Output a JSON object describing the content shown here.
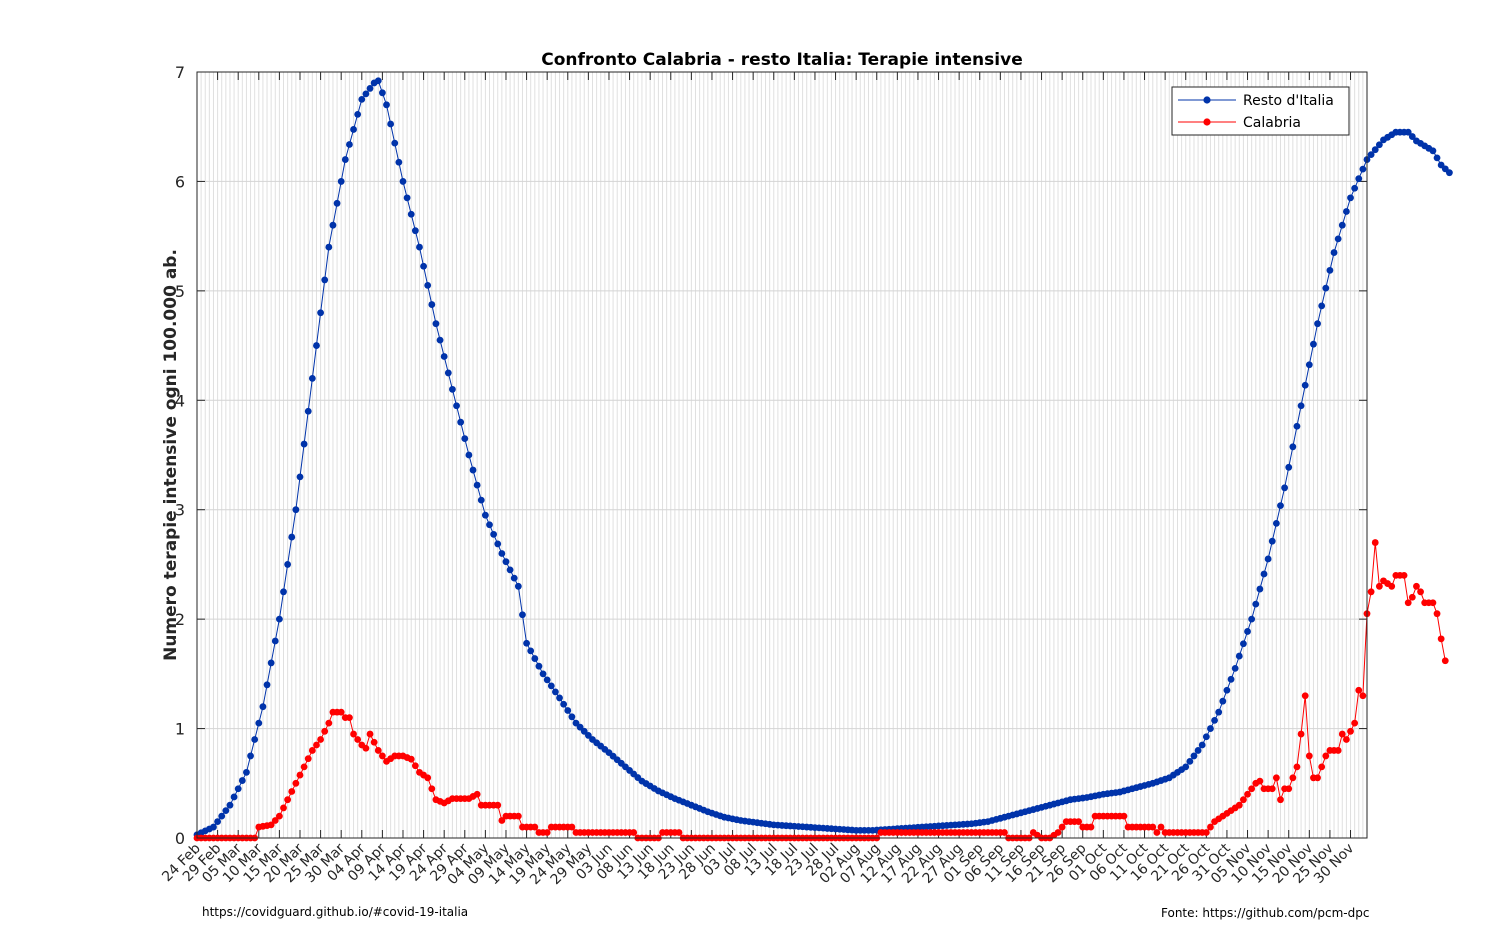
{
  "chart_data": {
    "type": "line",
    "title": "Confronto Calabria - resto Italia: Terapie intensive",
    "xlabel": "",
    "ylabel": "Numero terapie intensive ogni 100.000 ab.",
    "ylim": [
      0,
      7
    ],
    "yticks": [
      0,
      1,
      2,
      3,
      4,
      5,
      6,
      7
    ],
    "grid": true,
    "legend_position": "top-right",
    "xticks": [
      "24 Feb",
      "29 Feb",
      "05 Mar",
      "10 Mar",
      "15 Mar",
      "20 Mar",
      "25 Mar",
      "30 Mar",
      "04 Apr",
      "09 Apr",
      "14 Apr",
      "19 Apr",
      "24 Apr",
      "29 Apr",
      "04 May",
      "09 May",
      "14 May",
      "19 May",
      "24 May",
      "29 May",
      "03 Jun",
      "08 Jun",
      "13 Jun",
      "18 Jun",
      "23 Jun",
      "28 Jun",
      "03 Jul",
      "08 Jul",
      "13 Jul",
      "18 Jul",
      "23 Jul",
      "28 Jul",
      "02 Aug",
      "07 Aug",
      "12 Aug",
      "17 Aug",
      "22 Aug",
      "27 Aug",
      "01 Sep",
      "06 Sep",
      "11 Sep",
      "16 Sep",
      "21 Sep",
      "26 Sep",
      "01 Oct",
      "06 Oct",
      "11 Oct",
      "16 Oct",
      "21 Oct",
      "26 Oct",
      "31 Oct",
      "05 Nov",
      "10 Nov",
      "15 Nov",
      "20 Nov",
      "25 Nov",
      "30 Nov"
    ],
    "series": [
      {
        "name": "Resto d'Italia",
        "color": "#0033aa",
        "points": [
          [
            0,
            0.03
          ],
          [
            4,
            0.1
          ],
          [
            8,
            0.3
          ],
          [
            12,
            0.6
          ],
          [
            16,
            1.2
          ],
          [
            20,
            2.0
          ],
          [
            24,
            3.0
          ],
          [
            28,
            4.2
          ],
          [
            32,
            5.4
          ],
          [
            36,
            6.2
          ],
          [
            40,
            6.75
          ],
          [
            43,
            6.9
          ],
          [
            44,
            6.92
          ],
          [
            46,
            6.7
          ],
          [
            50,
            6.0
          ],
          [
            54,
            5.4
          ],
          [
            58,
            4.7
          ],
          [
            62,
            4.1
          ],
          [
            66,
            3.5
          ],
          [
            70,
            2.95
          ],
          [
            74,
            2.6
          ],
          [
            78,
            2.3
          ],
          [
            80,
            1.78
          ],
          [
            84,
            1.5
          ],
          [
            88,
            1.28
          ],
          [
            92,
            1.05
          ],
          [
            96,
            0.9
          ],
          [
            100,
            0.78
          ],
          [
            104,
            0.65
          ],
          [
            108,
            0.52
          ],
          [
            112,
            0.43
          ],
          [
            116,
            0.36
          ],
          [
            120,
            0.3
          ],
          [
            124,
            0.24
          ],
          [
            128,
            0.19
          ],
          [
            132,
            0.16
          ],
          [
            136,
            0.14
          ],
          [
            140,
            0.12
          ],
          [
            144,
            0.11
          ],
          [
            148,
            0.1
          ],
          [
            152,
            0.09
          ],
          [
            156,
            0.08
          ],
          [
            160,
            0.07
          ],
          [
            164,
            0.07
          ],
          [
            168,
            0.08
          ],
          [
            172,
            0.09
          ],
          [
            176,
            0.1
          ],
          [
            180,
            0.11
          ],
          [
            184,
            0.12
          ],
          [
            188,
            0.13
          ],
          [
            192,
            0.15
          ],
          [
            196,
            0.19
          ],
          [
            200,
            0.23
          ],
          [
            204,
            0.27
          ],
          [
            208,
            0.31
          ],
          [
            212,
            0.35
          ],
          [
            216,
            0.37
          ],
          [
            220,
            0.4
          ],
          [
            224,
            0.42
          ],
          [
            228,
            0.46
          ],
          [
            232,
            0.5
          ],
          [
            236,
            0.55
          ],
          [
            240,
            0.65
          ],
          [
            244,
            0.85
          ],
          [
            248,
            1.15
          ],
          [
            252,
            1.55
          ],
          [
            256,
            2.0
          ],
          [
            260,
            2.55
          ],
          [
            264,
            3.2
          ],
          [
            268,
            3.95
          ],
          [
            272,
            4.7
          ],
          [
            276,
            5.35
          ],
          [
            280,
            5.85
          ],
          [
            284,
            6.2
          ],
          [
            288,
            6.38
          ],
          [
            291,
            6.45
          ],
          [
            294,
            6.45
          ],
          [
            296,
            6.37
          ],
          [
            300,
            6.28
          ],
          [
            302,
            6.15
          ],
          [
            304,
            6.08
          ]
        ]
      },
      {
        "name": "Calabria",
        "color": "#ff0000",
        "points": [
          [
            0,
            0
          ],
          [
            14,
            0
          ],
          [
            15,
            0.1
          ],
          [
            18,
            0.12
          ],
          [
            20,
            0.2
          ],
          [
            22,
            0.35
          ],
          [
            24,
            0.5
          ],
          [
            26,
            0.65
          ],
          [
            28,
            0.8
          ],
          [
            30,
            0.9
          ],
          [
            32,
            1.05
          ],
          [
            33,
            1.15
          ],
          [
            35,
            1.15
          ],
          [
            36,
            1.1
          ],
          [
            37,
            1.1
          ],
          [
            38,
            0.95
          ],
          [
            40,
            0.85
          ],
          [
            41,
            0.82
          ],
          [
            42,
            0.95
          ],
          [
            44,
            0.8
          ],
          [
            46,
            0.7
          ],
          [
            48,
            0.75
          ],
          [
            50,
            0.75
          ],
          [
            52,
            0.72
          ],
          [
            54,
            0.6
          ],
          [
            56,
            0.55
          ],
          [
            57,
            0.45
          ],
          [
            58,
            0.35
          ],
          [
            60,
            0.32
          ],
          [
            62,
            0.36
          ],
          [
            66,
            0.36
          ],
          [
            68,
            0.4
          ],
          [
            69,
            0.3
          ],
          [
            73,
            0.3
          ],
          [
            74,
            0.16
          ],
          [
            75,
            0.2
          ],
          [
            78,
            0.2
          ],
          [
            79,
            0.1
          ],
          [
            82,
            0.1
          ],
          [
            83,
            0.05
          ],
          [
            85,
            0.05
          ],
          [
            86,
            0.1
          ],
          [
            91,
            0.1
          ],
          [
            92,
            0.05
          ],
          [
            106,
            0.05
          ],
          [
            107,
            0
          ],
          [
            112,
            0
          ],
          [
            113,
            0.05
          ],
          [
            117,
            0.05
          ],
          [
            118,
            0
          ],
          [
            165,
            0
          ],
          [
            166,
            0.05
          ],
          [
            196,
            0.05
          ],
          [
            197,
            0
          ],
          [
            202,
            0
          ],
          [
            203,
            0.05
          ],
          [
            205,
            0
          ],
          [
            207,
            0
          ],
          [
            209,
            0.05
          ],
          [
            210,
            0.1
          ],
          [
            211,
            0.15
          ],
          [
            214,
            0.15
          ],
          [
            215,
            0.1
          ],
          [
            217,
            0.1
          ],
          [
            218,
            0.2
          ],
          [
            225,
            0.2
          ],
          [
            226,
            0.1
          ],
          [
            232,
            0.1
          ],
          [
            233,
            0.05
          ],
          [
            234,
            0.1
          ],
          [
            235,
            0.05
          ],
          [
            245,
            0.05
          ],
          [
            247,
            0.15
          ],
          [
            249,
            0.2
          ],
          [
            251,
            0.25
          ],
          [
            253,
            0.3
          ],
          [
            255,
            0.4
          ],
          [
            256,
            0.45
          ],
          [
            257,
            0.5
          ],
          [
            258,
            0.52
          ],
          [
            259,
            0.45
          ],
          [
            261,
            0.45
          ],
          [
            262,
            0.55
          ],
          [
            263,
            0.35
          ],
          [
            264,
            0.45
          ],
          [
            265,
            0.45
          ],
          [
            267,
            0.65
          ],
          [
            268,
            0.95
          ],
          [
            269,
            1.3
          ],
          [
            270,
            0.75
          ],
          [
            271,
            0.55
          ],
          [
            272,
            0.55
          ],
          [
            273,
            0.65
          ],
          [
            274,
            0.75
          ],
          [
            275,
            0.8
          ],
          [
            277,
            0.8
          ],
          [
            278,
            0.95
          ],
          [
            279,
            0.9
          ],
          [
            281,
            1.05
          ],
          [
            282,
            1.35
          ],
          [
            283,
            1.3
          ],
          [
            284,
            2.05
          ],
          [
            285,
            2.25
          ],
          [
            286,
            2.7
          ],
          [
            287,
            2.3
          ],
          [
            288,
            2.35
          ],
          [
            290,
            2.3
          ],
          [
            291,
            2.4
          ],
          [
            293,
            2.4
          ],
          [
            294,
            2.15
          ],
          [
            295,
            2.2
          ],
          [
            296,
            2.3
          ],
          [
            297,
            2.25
          ],
          [
            298,
            2.15
          ],
          [
            300,
            2.15
          ],
          [
            301,
            2.05
          ],
          [
            302,
            1.82
          ],
          [
            303,
            1.62
          ]
        ]
      }
    ],
    "footer_left": "https://covidguard.github.io/#covid-19-italia",
    "footer_right": "Fonte: https://github.com/pcm-dpc"
  }
}
